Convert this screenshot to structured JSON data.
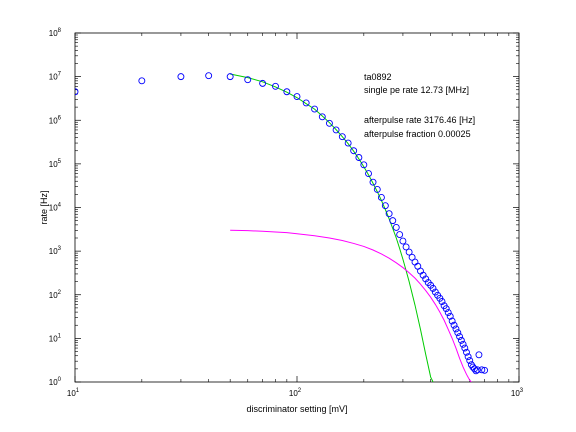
{
  "chart_data": {
    "type": "scatter",
    "xscale": "log",
    "yscale": "log",
    "xlim": [
      10,
      1000
    ],
    "ylim": [
      1,
      100000000
    ],
    "xlabel": "discriminator setting [mV]",
    "ylabel": "rate [Hz]",
    "x_ticks": [
      {
        "value": 10,
        "base": "10",
        "exp": "1"
      },
      {
        "value": 100,
        "base": "10",
        "exp": "2"
      },
      {
        "value": 1000,
        "base": "10",
        "exp": "3"
      }
    ],
    "y_ticks": [
      {
        "value": 1,
        "base": "10",
        "exp": "0"
      },
      {
        "value": 10,
        "base": "10",
        "exp": "1"
      },
      {
        "value": 100,
        "base": "10",
        "exp": "2"
      },
      {
        "value": 1000,
        "base": "10",
        "exp": "3"
      },
      {
        "value": 10000,
        "base": "10",
        "exp": "4"
      },
      {
        "value": 100000,
        "base": "10",
        "exp": "5"
      },
      {
        "value": 1000000,
        "base": "10",
        "exp": "6"
      },
      {
        "value": 10000000,
        "base": "10",
        "exp": "7"
      },
      {
        "value": 100000000,
        "base": "10",
        "exp": "8"
      }
    ],
    "grid": false,
    "annotations": [
      "ta0892",
      "single pe rate 12.73 [MHz]",
      "afterpulse rate 3176.46 [Hz]",
      "afterpulse fraction 0.00025"
    ],
    "colors": {
      "points": "#0000ff",
      "fit_single_pe": "#00cc00",
      "fit_afterpulse": "#ff00ff"
    },
    "series": [
      {
        "kind": "points",
        "x": [
          10,
          20,
          30,
          40,
          50,
          60,
          70,
          80,
          90,
          100,
          110,
          120,
          130,
          140,
          150,
          160,
          170,
          180,
          190,
          200,
          210,
          220,
          230,
          240,
          250,
          260,
          270,
          280,
          290,
          300,
          310,
          320,
          330,
          340,
          350,
          360,
          370,
          380,
          390,
          400,
          410,
          420,
          430,
          440,
          450,
          460,
          470,
          480,
          490,
          500,
          510,
          520,
          530,
          540,
          550,
          560,
          570,
          580,
          590,
          600,
          610,
          620,
          630,
          640,
          650,
          660,
          680,
          700
        ],
        "y": [
          4500000,
          8000000,
          10000000,
          10500000,
          10000000,
          8500000,
          7000000,
          6000000,
          4500000,
          3500000,
          2500000,
          1800000,
          1200000,
          850000,
          600000,
          420000,
          300000,
          200000,
          140000,
          95000,
          60000,
          38000,
          26000,
          17000,
          11000,
          7200,
          5000,
          3500,
          2400,
          1700,
          1250,
          950,
          720,
          560,
          450,
          350,
          280,
          230,
          190,
          165,
          140,
          115,
          97,
          83,
          70,
          56,
          48,
          39,
          32,
          25,
          20,
          16.5,
          13.5,
          11,
          9,
          7.3,
          6,
          4.8,
          3.8,
          3.1,
          2.5,
          2.2,
          2.0,
          1.8,
          1.9,
          4.2,
          1.9,
          1.85
        ]
      },
      {
        "kind": "line",
        "name": "",
        "x": [
          50,
          60,
          70,
          80,
          90,
          100,
          110,
          120,
          130,
          140,
          150,
          160,
          170,
          180,
          190,
          200,
          210,
          220,
          230,
          240,
          250,
          260,
          270,
          280,
          290,
          300,
          310,
          320,
          340,
          360,
          380,
          400,
          410
        ],
        "y": [
          11500000,
          9500000,
          7600000,
          5800000,
          4400000,
          3300000,
          2400000,
          1800000,
          1250000,
          880000,
          610000,
          420000,
          290000,
          195000,
          130000,
          86000,
          56000,
          36000,
          23000,
          14500,
          9000,
          5500,
          3300,
          2000,
          1150,
          650,
          360,
          200,
          58,
          16,
          4.3,
          1.3,
          1.0
        ]
      },
      {
        "kind": "line",
        "name": "",
        "x": [
          50,
          60,
          70,
          80,
          90,
          100,
          120,
          140,
          160,
          180,
          200,
          220,
          240,
          260,
          280,
          300,
          320,
          340,
          360,
          380,
          400,
          420,
          440,
          460,
          480,
          500,
          520,
          540,
          560,
          580,
          600,
          610
        ],
        "y": [
          3000,
          2950,
          2850,
          2750,
          2650,
          2500,
          2250,
          2000,
          1750,
          1500,
          1280,
          1060,
          860,
          690,
          540,
          420,
          320,
          240,
          175,
          125,
          88,
          60,
          40,
          26,
          16,
          10,
          6,
          3.5,
          2.2,
          1.5,
          1.1,
          1.0
        ]
      }
    ]
  }
}
